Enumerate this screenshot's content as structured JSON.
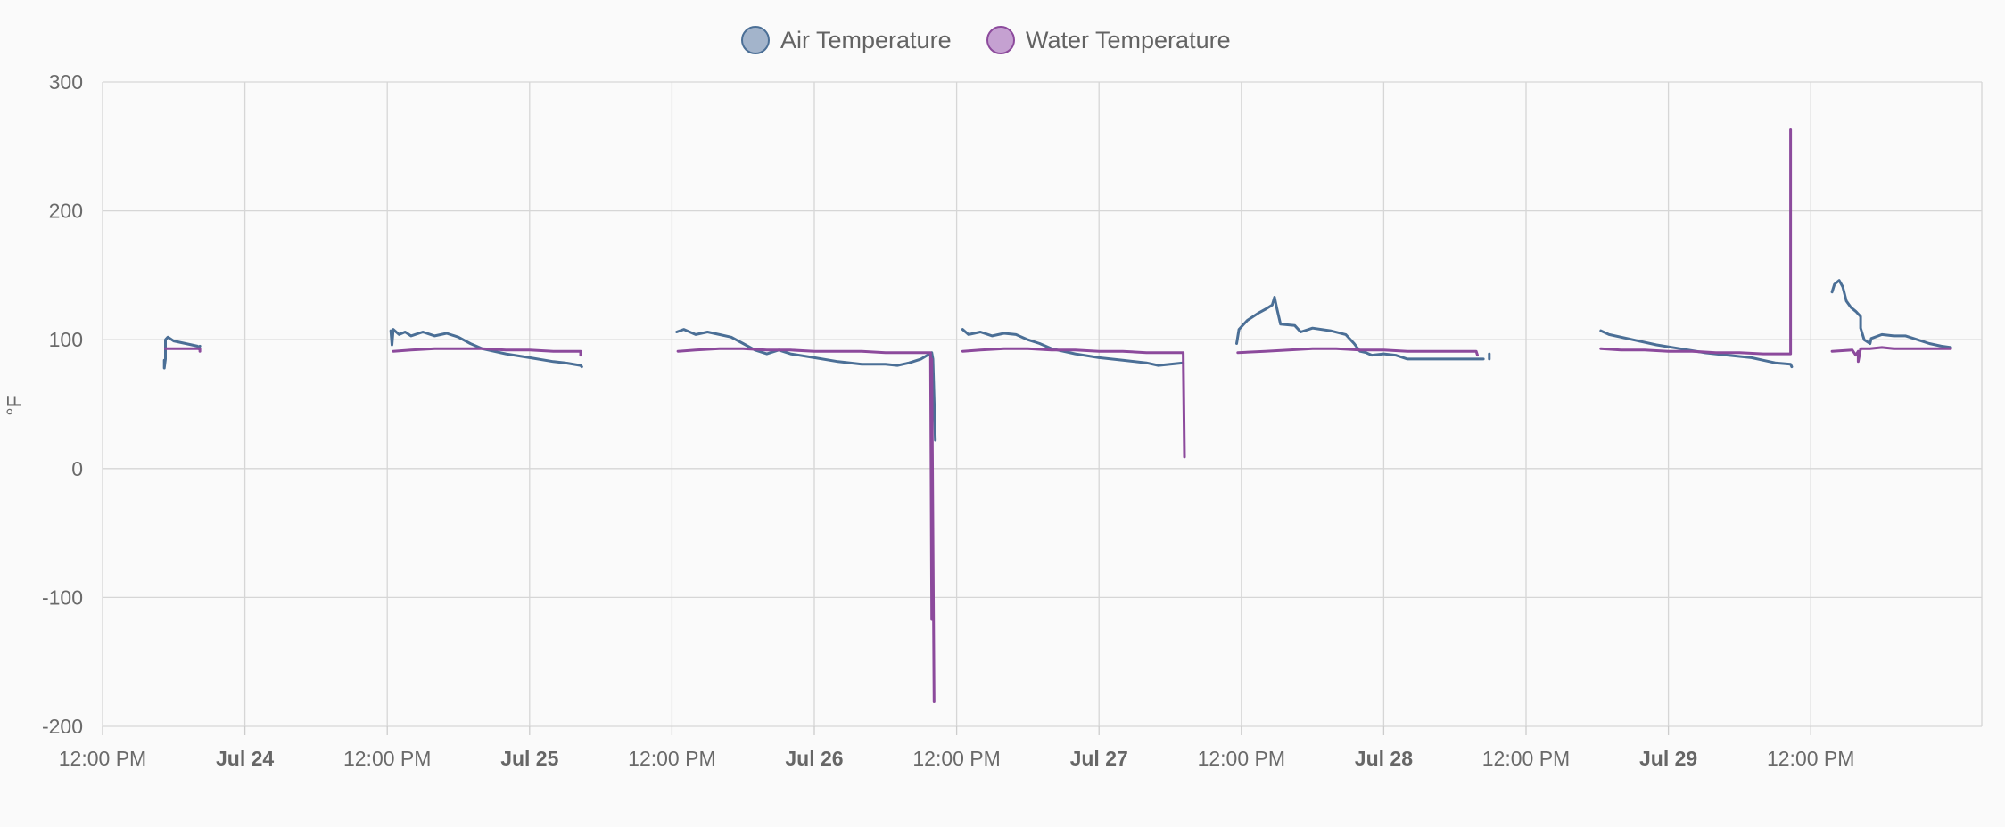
{
  "chart_data": {
    "type": "line",
    "ylabel": "°F",
    "ylim": [
      -200,
      300
    ],
    "yticks": [
      300,
      200,
      100,
      0,
      -100,
      -200
    ],
    "x_unit": "hours since 2023-07-23 12:00",
    "xlim": [
      0,
      150
    ],
    "xticks": [
      {
        "x": 0,
        "label": "12:00 PM",
        "major": false
      },
      {
        "x": 12,
        "label": "Jul 24",
        "major": true
      },
      {
        "x": 24,
        "label": "12:00 PM",
        "major": false
      },
      {
        "x": 36,
        "label": "Jul 25",
        "major": true
      },
      {
        "x": 48,
        "label": "12:00 PM",
        "major": false
      },
      {
        "x": 60,
        "label": "Jul 26",
        "major": true
      },
      {
        "x": 72,
        "label": "12:00 PM",
        "major": false
      },
      {
        "x": 84,
        "label": "Jul 27",
        "major": true
      },
      {
        "x": 96,
        "label": "12:00 PM",
        "major": false
      },
      {
        "x": 108,
        "label": "Jul 28",
        "major": true
      },
      {
        "x": 120,
        "label": "12:00 PM",
        "major": false
      },
      {
        "x": 132,
        "label": "Jul 29",
        "major": true
      },
      {
        "x": 144,
        "label": "12:00 PM",
        "major": false
      }
    ],
    "grid": true,
    "legend_position": "top-center",
    "series": [
      {
        "name": "Air Temperature",
        "color": "#4b6f96",
        "fill": "#a3b4cb",
        "segments": [
          [
            [
              5.2,
              84
            ],
            [
              5.2,
              78
            ],
            [
              5.3,
              85
            ],
            [
              5.3,
              100
            ],
            [
              5.5,
              102
            ],
            [
              6,
              99
            ],
            [
              7,
              97
            ],
            [
              8,
              95
            ],
            [
              8.1,
              93
            ],
            [
              8.2,
              95
            ]
          ],
          [
            [
              24.3,
              107
            ],
            [
              24.4,
              96
            ],
            [
              24.5,
              108
            ],
            [
              25,
              104
            ],
            [
              25.5,
              106
            ],
            [
              26,
              103
            ],
            [
              27,
              106
            ],
            [
              28,
              103
            ],
            [
              29,
              105
            ],
            [
              30,
              102
            ],
            [
              31,
              97
            ],
            [
              32,
              93
            ],
            [
              34,
              89
            ],
            [
              36,
              86
            ],
            [
              38,
              83
            ],
            [
              39,
              82
            ],
            [
              40.3,
              80
            ],
            [
              40.4,
              79
            ]
          ],
          [
            [
              48.4,
              106
            ],
            [
              49,
              108
            ],
            [
              50,
              104
            ],
            [
              51,
              106
            ],
            [
              52,
              104
            ],
            [
              53,
              102
            ],
            [
              54,
              97
            ],
            [
              55,
              92
            ],
            [
              56,
              89
            ],
            [
              57,
              92
            ],
            [
              58,
              89
            ],
            [
              60,
              86
            ],
            [
              62,
              83
            ],
            [
              64,
              81
            ],
            [
              66,
              81
            ],
            [
              67,
              80
            ],
            [
              68,
              82
            ],
            [
              69,
              85
            ],
            [
              69.9,
              90
            ],
            [
              70,
              85
            ],
            [
              70.2,
              22
            ]
          ],
          [
            [
              72.5,
              108
            ],
            [
              73,
              104
            ],
            [
              74,
              106
            ],
            [
              75,
              103
            ],
            [
              76,
              105
            ],
            [
              77,
              104
            ],
            [
              78,
              100
            ],
            [
              79,
              97
            ],
            [
              80,
              93
            ],
            [
              82,
              89
            ],
            [
              84,
              86
            ],
            [
              86,
              84
            ],
            [
              88,
              82
            ],
            [
              89,
              80
            ],
            [
              90,
              81
            ],
            [
              91.1,
              82
            ]
          ],
          [
            [
              95.6,
              97
            ],
            [
              95.8,
              108
            ],
            [
              96.5,
              115
            ],
            [
              97.5,
              121
            ],
            [
              98.1,
              124
            ],
            [
              98.6,
              127
            ],
            [
              98.8,
              133
            ],
            [
              99,
              124
            ],
            [
              99.3,
              112
            ],
            [
              100.5,
              111
            ],
            [
              101,
              106
            ],
            [
              102,
              109
            ],
            [
              103.5,
              107
            ],
            [
              104.8,
              104
            ],
            [
              105.5,
              97
            ],
            [
              106,
              91
            ],
            [
              106.5,
              90
            ],
            [
              107,
              88
            ],
            [
              108,
              89
            ],
            [
              109,
              88
            ],
            [
              110,
              85
            ],
            [
              116.4,
              85
            ]
          ],
          [
            [
              116.9,
              89
            ],
            [
              116.9,
              85
            ]
          ],
          [
            [
              126.3,
              107
            ],
            [
              127,
              104
            ],
            [
              129,
              100
            ],
            [
              131,
              96
            ],
            [
              133,
              93
            ],
            [
              135,
              90
            ],
            [
              137,
              88
            ],
            [
              139,
              86
            ],
            [
              140,
              84
            ],
            [
              141,
              82
            ],
            [
              142.3,
              81
            ],
            [
              142.4,
              79
            ]
          ],
          [
            [
              145.8,
              137
            ],
            [
              146,
              143
            ],
            [
              146.4,
              146
            ],
            [
              146.7,
              141
            ],
            [
              147,
              130
            ],
            [
              147.4,
              125
            ],
            [
              147.8,
              122
            ],
            [
              148.2,
              118
            ],
            [
              148.2,
              109
            ],
            [
              148.5,
              100
            ],
            [
              149,
              97
            ],
            [
              149.1,
              101
            ],
            [
              150,
              104
            ],
            [
              151,
              103
            ],
            [
              152,
              103
            ],
            [
              153,
              100
            ],
            [
              154,
              97
            ],
            [
              155,
              95
            ],
            [
              155.8,
              94
            ]
          ]
        ]
      },
      {
        "name": "Water Temperature",
        "color": "#8c4a9c",
        "fill": "#c5a1d1",
        "segments": [
          [
            [
              5.3,
              93
            ],
            [
              8.2,
              93
            ],
            [
              8.2,
              91
            ]
          ],
          [
            [
              24.5,
              91
            ],
            [
              26,
              92
            ],
            [
              28,
              93
            ],
            [
              30,
              93
            ],
            [
              32,
              93
            ],
            [
              34,
              92
            ],
            [
              36,
              92
            ],
            [
              38,
              91
            ],
            [
              40.3,
              91
            ],
            [
              40.3,
              88
            ]
          ],
          [
            [
              48.5,
              91
            ],
            [
              50,
              92
            ],
            [
              52,
              93
            ],
            [
              54,
              93
            ],
            [
              56,
              92
            ],
            [
              58,
              92
            ],
            [
              60,
              91
            ],
            [
              62,
              91
            ],
            [
              64,
              91
            ],
            [
              66,
              90
            ],
            [
              68,
              90
            ],
            [
              69.8,
              90
            ],
            [
              69.9,
              -117
            ],
            [
              69.9,
              85
            ],
            [
              70.1,
              -181
            ]
          ],
          [
            [
              72.5,
              91
            ],
            [
              74,
              92
            ],
            [
              76,
              93
            ],
            [
              78,
              93
            ],
            [
              80,
              92
            ],
            [
              82,
              92
            ],
            [
              84,
              91
            ],
            [
              86,
              91
            ],
            [
              88,
              90
            ],
            [
              90,
              90
            ],
            [
              91.1,
              90
            ],
            [
              91.2,
              9
            ]
          ],
          [
            [
              95.7,
              90
            ],
            [
              98,
              91
            ],
            [
              100,
              92
            ],
            [
              102,
              93
            ],
            [
              104,
              93
            ],
            [
              106,
              92
            ],
            [
              108,
              92
            ],
            [
              110,
              91
            ],
            [
              112,
              91
            ],
            [
              114,
              91
            ],
            [
              115.8,
              91
            ],
            [
              115.9,
              88
            ]
          ],
          [
            [
              126.3,
              93
            ],
            [
              128,
              92
            ],
            [
              130,
              92
            ],
            [
              132,
              91
            ],
            [
              134,
              91
            ],
            [
              136,
              90
            ],
            [
              138,
              90
            ],
            [
              140,
              89
            ],
            [
              142.3,
              89
            ],
            [
              142.3,
              263
            ]
          ],
          [
            [
              145.8,
              91
            ],
            [
              147.5,
              92
            ],
            [
              147.8,
              88
            ],
            [
              148,
              91
            ],
            [
              148,
              83
            ],
            [
              148.2,
              93
            ],
            [
              149,
              93
            ],
            [
              150,
              94
            ],
            [
              151,
              93
            ],
            [
              152,
              93
            ],
            [
              154,
              93
            ],
            [
              155.8,
              93
            ]
          ]
        ]
      }
    ]
  }
}
